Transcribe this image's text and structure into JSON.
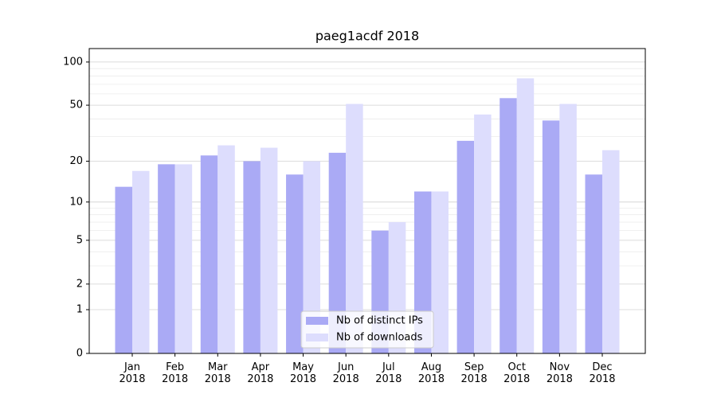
{
  "chart_data": {
    "type": "bar",
    "title": "paeg1acdf 2018",
    "categories": [
      "Jan\n2018",
      "Feb\n2018",
      "Mar\n2018",
      "Apr\n2018",
      "May\n2018",
      "Jun\n2018",
      "Jul\n2018",
      "Aug\n2018",
      "Sep\n2018",
      "Oct\n2018",
      "Nov\n2018",
      "Dec\n2018"
    ],
    "series": [
      {
        "name": "Nb of distinct IPs",
        "color": "#aaaaf5",
        "values": [
          13,
          19,
          22,
          20,
          16,
          23,
          6,
          12,
          28,
          56,
          39,
          16
        ]
      },
      {
        "name": "Nb of downloads",
        "color": "#ddddfd",
        "values": [
          17,
          19,
          26,
          25,
          20,
          51,
          7,
          12,
          43,
          77,
          51,
          24
        ]
      }
    ],
    "yscale": "log1p",
    "ylim": [
      0,
      124
    ],
    "yticks": [
      0,
      1,
      2,
      5,
      10,
      20,
      50,
      100
    ],
    "yminorticks": [
      3,
      4,
      6,
      7,
      8,
      9,
      30,
      40,
      60,
      70,
      80,
      90
    ],
    "grid": true,
    "legend": "lower center"
  }
}
